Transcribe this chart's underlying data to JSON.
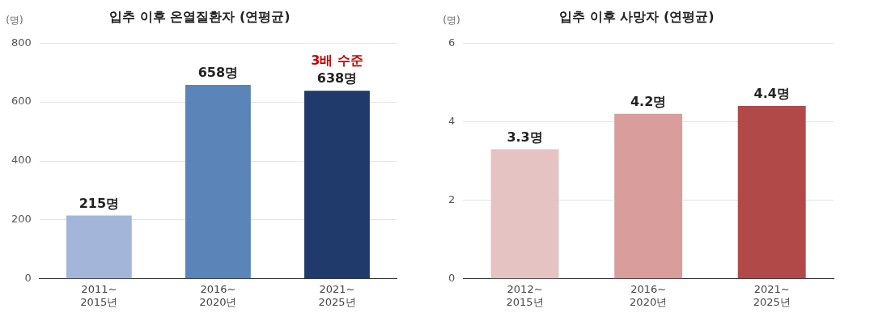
{
  "chart_data": [
    {
      "type": "bar",
      "title": "입추 이후 온열질환자 (연평균)",
      "ylabel": "(명)",
      "categories": [
        "2011~\n2015년",
        "2016~\n2020년",
        "2021~\n2025년"
      ],
      "values": [
        215,
        658,
        638
      ],
      "colors": [
        "#a3b6d9",
        "#5b84b9",
        "#1f3a6b"
      ],
      "value_labels": [
        "215명",
        "658명",
        "638명"
      ],
      "annotations": [
        {
          "text": "3배 수준",
          "x": "2021~\n2025년",
          "y": 638
        }
      ],
      "ylim": [
        0,
        800
      ],
      "yticks": [
        0,
        200,
        400,
        600,
        800
      ],
      "grid": "y"
    },
    {
      "type": "bar",
      "title": "입추 이후 사망자 (연평균)",
      "ylabel": "(명)",
      "categories": [
        "2012~\n2015년",
        "2016~\n2020년",
        "2021~\n2025년"
      ],
      "values": [
        3.3,
        4.2,
        4.4
      ],
      "colors": [
        "#e6c3c3",
        "#d99d9c",
        "#b14949"
      ],
      "value_labels": [
        "3.3명",
        "4.2명",
        "4.4명"
      ],
      "ylim": [
        0,
        6
      ],
      "yticks": [
        0,
        2,
        4,
        6
      ],
      "grid": "y"
    }
  ]
}
